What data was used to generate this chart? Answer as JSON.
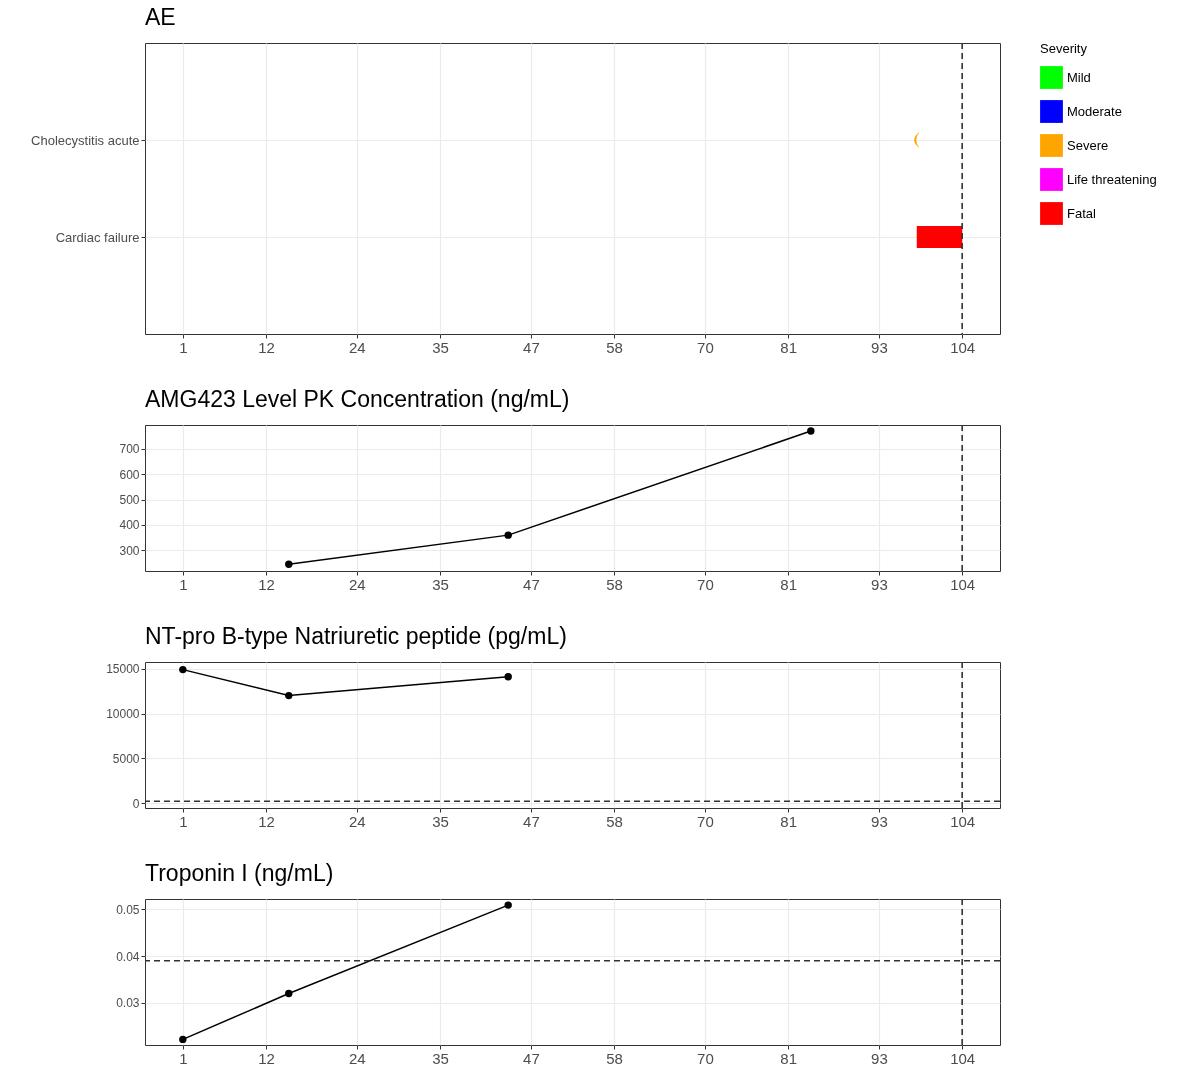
{
  "chart_data": [
    {
      "type": "bar",
      "orientation": "horizontal",
      "title": "AE",
      "categories": [
        "Cholecystitis acute",
        "Cardiac failure"
      ],
      "legend_title": "Severity",
      "legend": "right",
      "series": [
        {
          "name": "Mild",
          "color": "#00ff00",
          "values": [
            null,
            null
          ]
        },
        {
          "name": "Moderate",
          "color": "#0000ff",
          "values": [
            null,
            null
          ]
        },
        {
          "name": "Severe",
          "color": "#ffa500",
          "type": "scatter",
          "values": [
            98,
            null
          ]
        },
        {
          "name": "Life threatening",
          "color": "#ff00ff",
          "values": [
            null,
            null
          ]
        },
        {
          "name": "Fatal",
          "color": "#ff0000",
          "values": [
            null,
            6
          ],
          "base": [
            null,
            98
          ]
        }
      ],
      "xlim": [
        -4,
        109
      ],
      "xticks": [
        1,
        12,
        24,
        35,
        47,
        58,
        70,
        81,
        93,
        104
      ],
      "grid": true,
      "ref_lines": [
        {
          "axis": "x",
          "value": 104,
          "line_style": "dashed"
        }
      ]
    },
    {
      "type": "line",
      "title": "AMG423 Level PK Concentration (ng/mL)",
      "marker": "circle",
      "x": [
        15,
        44,
        84
      ],
      "series": [
        {
          "color": "#000000",
          "values": [
            244,
            359,
            771
          ]
        }
      ],
      "xlim": [
        -4,
        109
      ],
      "xticks": [
        1,
        12,
        24,
        35,
        47,
        58,
        70,
        81,
        93,
        104
      ],
      "ylim": [
        217,
        795
      ],
      "yticks": [
        300,
        400,
        500,
        600,
        700
      ],
      "grid": true,
      "ref_lines": [
        {
          "axis": "x",
          "value": 104,
          "line_style": "dashed"
        }
      ]
    },
    {
      "type": "line",
      "title": "NT-pro B-type Natriuretic peptide (pg/mL)",
      "marker": "circle",
      "x": [
        1,
        15,
        44
      ],
      "series": [
        {
          "color": "#000000",
          "values": [
            14900,
            12000,
            14100
          ]
        }
      ],
      "xlim": [
        -4,
        109
      ],
      "xticks": [
        1,
        12,
        24,
        35,
        47,
        58,
        70,
        81,
        93,
        104
      ],
      "ylim": [
        -550,
        15750
      ],
      "yticks": [
        0,
        5000,
        10000,
        15000
      ],
      "grid": true,
      "ref_lines": [
        {
          "axis": "x",
          "value": 104,
          "line_style": "dashed"
        },
        {
          "axis": "y",
          "value": 200,
          "line_style": "dashed"
        }
      ]
    },
    {
      "type": "line",
      "title": "Troponin I (ng/mL)",
      "marker": "circle",
      "x": [
        1,
        15,
        44
      ],
      "series": [
        {
          "color": "#000000",
          "values": [
            0.0222,
            0.032,
            0.0509
          ]
        }
      ],
      "xlim": [
        -4,
        109
      ],
      "xticks": [
        1,
        12,
        24,
        35,
        47,
        58,
        70,
        81,
        93,
        104
      ],
      "ylim": [
        0.021,
        0.0522
      ],
      "yticks": [
        0.03,
        0.04,
        0.05
      ],
      "grid": true,
      "ref_lines": [
        {
          "axis": "x",
          "value": 104,
          "line_style": "dashed"
        },
        {
          "axis": "y",
          "value": 0.039,
          "line_style": "dashed"
        }
      ]
    }
  ]
}
